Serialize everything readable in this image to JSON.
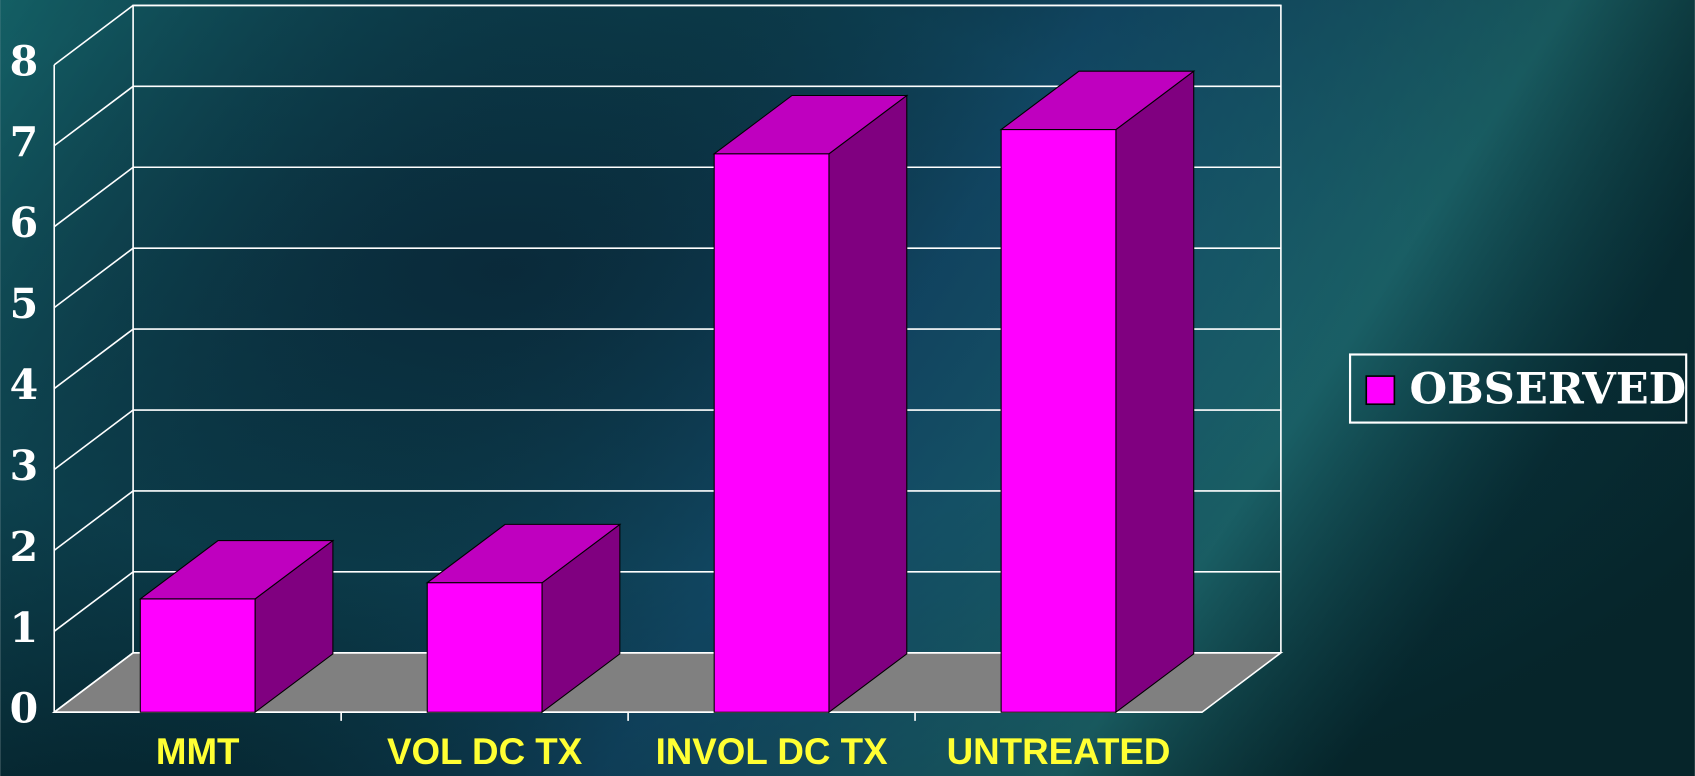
{
  "chart_data": {
    "type": "bar",
    "categories": [
      "MMT",
      "VOL DC TX",
      "INVOL DC TX",
      "UNTREATED"
    ],
    "series": [
      {
        "name": "OBSERVED",
        "color": "#ff00ff",
        "values": [
          1.4,
          1.6,
          6.9,
          7.2
        ]
      }
    ],
    "ylim": [
      0,
      8
    ],
    "yticks": [
      0,
      1,
      2,
      3,
      4,
      5,
      6,
      7,
      8
    ],
    "grid": true,
    "legend": "right"
  }
}
